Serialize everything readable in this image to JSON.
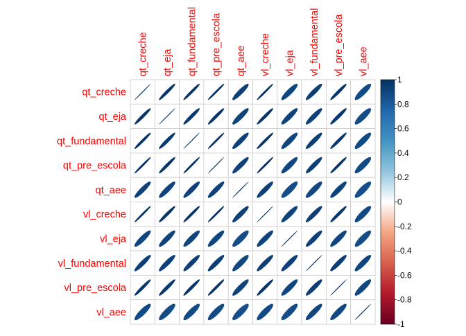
{
  "chart_data": {
    "type": "heatmap",
    "method": "ellipse",
    "variables": [
      "qt_creche",
      "qt_eja",
      "qt_fundamental",
      "qt_pre_escola",
      "qt_aee",
      "vl_creche",
      "vl_eja",
      "vl_fundamental",
      "vl_pre_escola",
      "vl_aee"
    ],
    "matrix": [
      [
        1.0,
        0.97,
        0.98,
        0.99,
        0.92,
        0.99,
        0.9,
        0.93,
        0.97,
        0.88
      ],
      [
        0.97,
        1.0,
        0.96,
        0.97,
        0.91,
        0.97,
        0.91,
        0.92,
        0.96,
        0.87
      ],
      [
        0.98,
        0.96,
        1.0,
        0.99,
        0.92,
        0.98,
        0.9,
        0.93,
        0.97,
        0.88
      ],
      [
        0.99,
        0.97,
        0.99,
        1.0,
        0.92,
        0.99,
        0.9,
        0.93,
        0.98,
        0.88
      ],
      [
        0.92,
        0.91,
        0.92,
        0.92,
        1.0,
        0.92,
        0.87,
        0.89,
        0.91,
        0.86
      ],
      [
        0.99,
        0.97,
        0.98,
        0.99,
        0.92,
        1.0,
        0.91,
        0.93,
        0.97,
        0.88
      ],
      [
        0.9,
        0.91,
        0.9,
        0.9,
        0.87,
        0.91,
        1.0,
        0.92,
        0.9,
        0.87
      ],
      [
        0.93,
        0.92,
        0.93,
        0.93,
        0.89,
        0.93,
        0.92,
        1.0,
        0.93,
        0.9
      ],
      [
        0.97,
        0.96,
        0.97,
        0.98,
        0.91,
        0.97,
        0.9,
        0.93,
        1.0,
        0.89
      ],
      [
        0.88,
        0.87,
        0.88,
        0.88,
        0.86,
        0.88,
        0.87,
        0.9,
        0.89,
        1.0
      ]
    ],
    "colorbar": {
      "min": -1,
      "max": 1,
      "ticks": [
        "1",
        "0.8",
        "0.6",
        "0.4",
        "0.2",
        "0",
        "-0.2",
        "-0.4",
        "-0.6",
        "-0.8",
        "-1"
      ],
      "tick_values": [
        1,
        0.8,
        0.6,
        0.4,
        0.2,
        0,
        -0.2,
        -0.4,
        -0.6,
        -0.8,
        -1
      ]
    }
  },
  "colors": {
    "label": "#ff0000",
    "positive_strong": "#053061",
    "positive_mid": "#2166ac",
    "neutral": "#ffffff",
    "negative_strong": "#67001f",
    "grid": "#cccccc"
  }
}
